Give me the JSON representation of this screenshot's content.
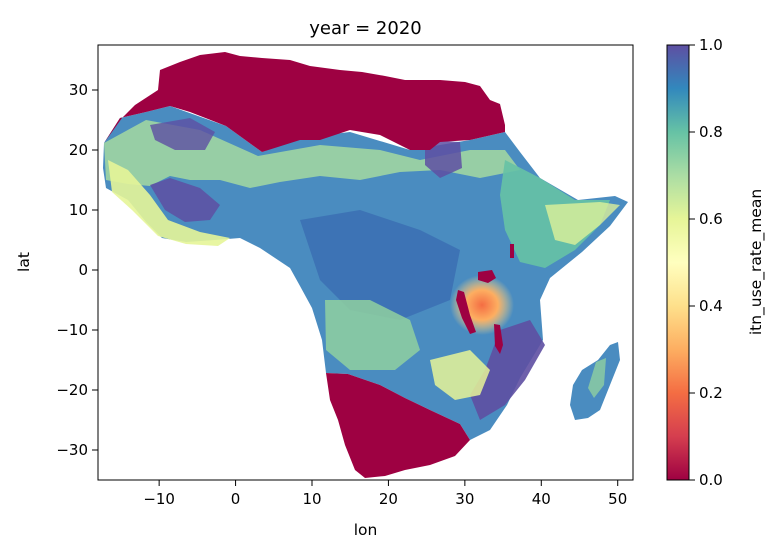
{
  "chart_data": {
    "type": "heatmap",
    "title": "year = 2020",
    "xlabel": "lon",
    "ylabel": "lat",
    "xlim": [
      -18,
      52
    ],
    "ylim": [
      -35,
      37.5
    ],
    "x_ticks": [
      -10,
      0,
      10,
      20,
      30,
      40,
      50
    ],
    "y_ticks": [
      30,
      20,
      10,
      0,
      -10,
      -20,
      -30
    ],
    "x_tick_labels": [
      "−10",
      "0",
      "10",
      "20",
      "30",
      "40",
      "50"
    ],
    "y_tick_labels": [
      "30",
      "20",
      "10",
      "0",
      "−10",
      "−20",
      "−30"
    ],
    "colorbar": {
      "label": "itn_use_rate_mean",
      "range": [
        0.0,
        1.0
      ],
      "colormap": "Spectral",
      "ticks": [
        1.0,
        0.8,
        0.6,
        0.4,
        0.2,
        0.0
      ],
      "tick_labels": [
        "1.0",
        "0.8",
        "0.6",
        "0.4",
        "0.2",
        "0.0"
      ]
    },
    "low_value_regions": [
      {
        "name": "North Africa",
        "value": 0.0
      },
      {
        "name": "Southern Africa",
        "value": 0.0
      },
      {
        "name": "Lake Victoria / Great Rift lakes",
        "value": 0.0
      }
    ],
    "notable_values": [
      {
        "name": "Tanzania hotspot",
        "lon": 33,
        "lat": -6,
        "value": 0.3
      }
    ],
    "grid": false
  }
}
